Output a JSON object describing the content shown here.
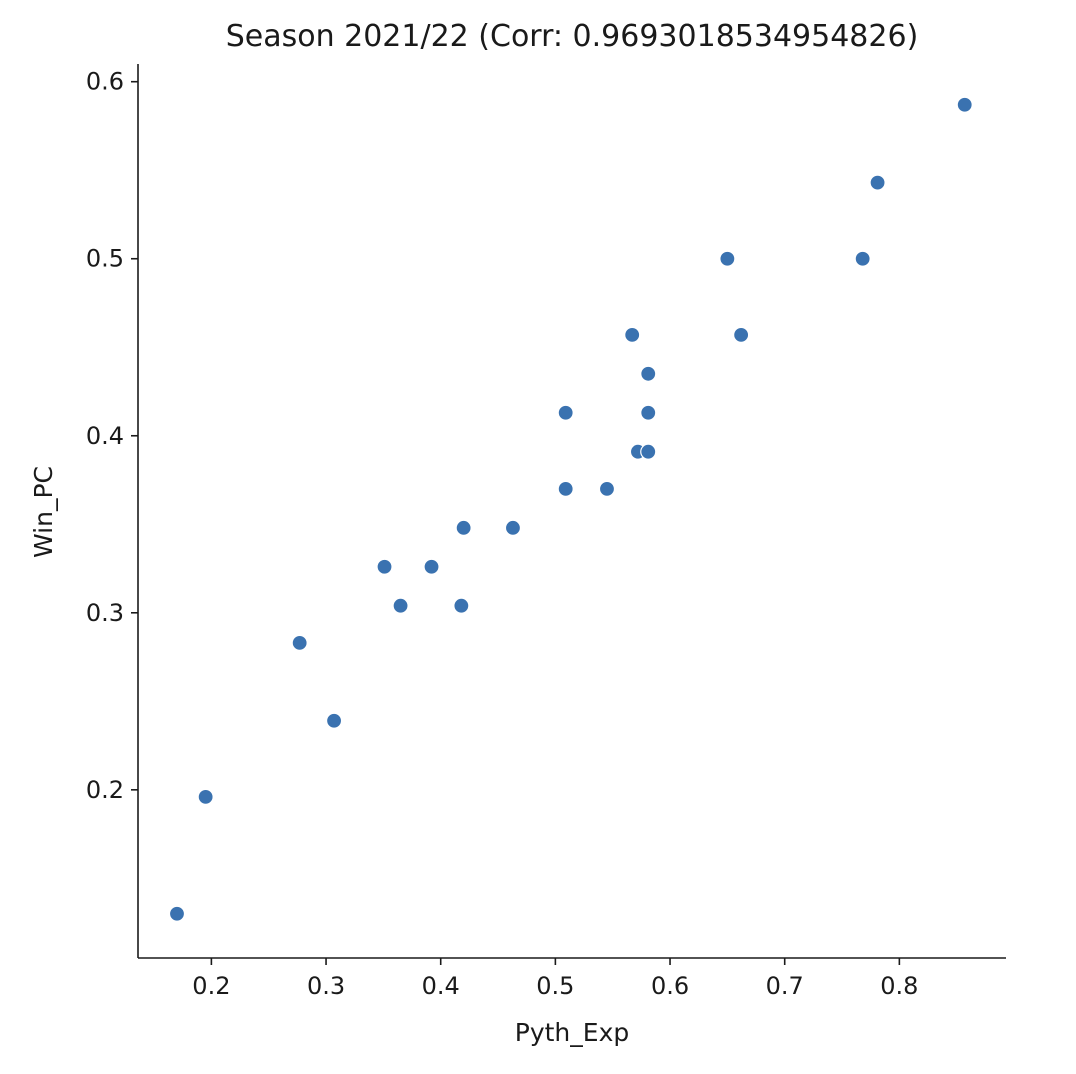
{
  "chart_data": {
    "type": "scatter",
    "title": "Season 2021/22 (Corr: 0.9693018534954826)",
    "xlabel": "Pyth_Exp",
    "ylabel": "Win_PC",
    "xlim": [
      0.136,
      0.893
    ],
    "ylim": [
      0.105,
      0.61
    ],
    "xticks": [
      0.2,
      0.3,
      0.4,
      0.5,
      0.6,
      0.7,
      0.8
    ],
    "yticks": [
      0.2,
      0.3,
      0.4,
      0.5,
      0.6
    ],
    "xtick_labels": [
      "0.2",
      "0.3",
      "0.4",
      "0.5",
      "0.6",
      "0.7",
      "0.8"
    ],
    "ytick_labels": [
      "0.2",
      "0.3",
      "0.4",
      "0.5",
      "0.6"
    ],
    "grid": false,
    "marker_color": "#3a72b0",
    "points": [
      {
        "x": 0.17,
        "y": 0.13
      },
      {
        "x": 0.195,
        "y": 0.196
      },
      {
        "x": 0.277,
        "y": 0.283
      },
      {
        "x": 0.307,
        "y": 0.239
      },
      {
        "x": 0.351,
        "y": 0.326
      },
      {
        "x": 0.365,
        "y": 0.304
      },
      {
        "x": 0.392,
        "y": 0.326
      },
      {
        "x": 0.418,
        "y": 0.304
      },
      {
        "x": 0.42,
        "y": 0.348
      },
      {
        "x": 0.463,
        "y": 0.348
      },
      {
        "x": 0.509,
        "y": 0.413
      },
      {
        "x": 0.509,
        "y": 0.37
      },
      {
        "x": 0.545,
        "y": 0.37
      },
      {
        "x": 0.567,
        "y": 0.457
      },
      {
        "x": 0.572,
        "y": 0.391
      },
      {
        "x": 0.581,
        "y": 0.391
      },
      {
        "x": 0.581,
        "y": 0.435
      },
      {
        "x": 0.581,
        "y": 0.413
      },
      {
        "x": 0.65,
        "y": 0.5
      },
      {
        "x": 0.662,
        "y": 0.457
      },
      {
        "x": 0.768,
        "y": 0.5
      },
      {
        "x": 0.781,
        "y": 0.543
      },
      {
        "x": 0.857,
        "y": 0.587
      }
    ]
  }
}
